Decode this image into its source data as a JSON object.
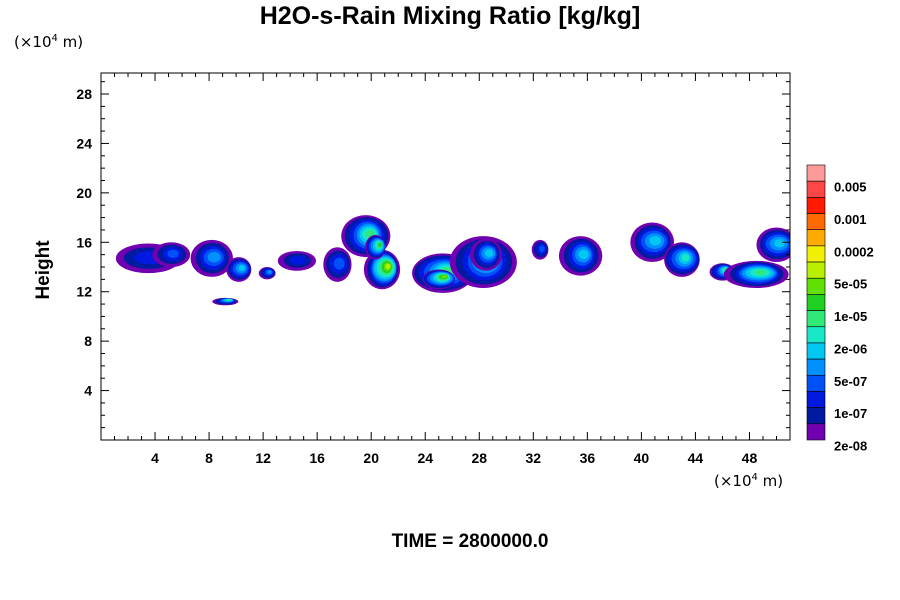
{
  "chart_data": {
    "type": "heatmap",
    "title": "H2O-s-Rain Mixing Ratio [kg/kg]",
    "ylabel": "Height",
    "xlabel": "",
    "x_units_prefix": "(×10",
    "x_units_exp": "4",
    "x_units_suffix": " m)",
    "y_units_prefix": "(×10",
    "y_units_exp": "4",
    "y_units_suffix": " m)",
    "xlim": [
      0,
      51
    ],
    "ylim": [
      0,
      29.7
    ],
    "x_ticks": [
      "4",
      "8",
      "12",
      "16",
      "20",
      "24",
      "28",
      "32",
      "36",
      "40",
      "44",
      "48"
    ],
    "y_ticks": [
      "4",
      "8",
      "12",
      "16",
      "20",
      "24",
      "28"
    ],
    "x_tick_values": [
      4,
      8,
      12,
      16,
      20,
      24,
      28,
      32,
      36,
      40,
      44,
      48
    ],
    "y_tick_values": [
      4,
      8,
      12,
      16,
      20,
      24,
      28
    ],
    "colorbar_labels": [
      "0.005",
      "0.001",
      "0.0002",
      "5e-05",
      "1e-05",
      "2e-06",
      "5e-07",
      "1e-07",
      "2e-08"
    ],
    "colorbar_colors": [
      "#ff9a9a",
      "#ff4646",
      "#ff1a00",
      "#ff6a00",
      "#ffaa00",
      "#f0f000",
      "#b8f000",
      "#60e000",
      "#20d020",
      "#30e878",
      "#18e8c8",
      "#00c8f0",
      "#0090ff",
      "#0050f8",
      "#0018e0",
      "#001aa0",
      "#7000b0"
    ],
    "features": [
      {
        "shape": "blob",
        "x": 3.5,
        "y": 14.7,
        "rx": 2.4,
        "ry": 1.2,
        "level": 14
      },
      {
        "shape": "blob",
        "x": 5.2,
        "y": 15.0,
        "rx": 1.3,
        "ry": 1.0,
        "level": 13
      },
      {
        "shape": "blob",
        "x": 8.2,
        "y": 14.7,
        "rx": 1.6,
        "ry": 1.5,
        "level": 12
      },
      {
        "shape": "blob",
        "x": 10.2,
        "y": 13.8,
        "rx": 1.0,
        "ry": 1.0,
        "level": 11
      },
      {
        "shape": "blob",
        "x": 12.3,
        "y": 13.5,
        "rx": 0.6,
        "ry": 0.5,
        "level": 12
      },
      {
        "shape": "blob",
        "x": 9.2,
        "y": 11.2,
        "rx": 0.9,
        "ry": 0.3,
        "level": 10
      },
      {
        "shape": "blob",
        "x": 14.5,
        "y": 14.5,
        "rx": 1.5,
        "ry": 0.8,
        "level": 14
      },
      {
        "shape": "blob",
        "x": 17.5,
        "y": 14.2,
        "rx": 1.1,
        "ry": 1.4,
        "level": 13
      },
      {
        "shape": "blob",
        "x": 19.6,
        "y": 16.5,
        "rx": 1.7,
        "ry": 1.7,
        "level": 9
      },
      {
        "shape": "blob",
        "x": 20.8,
        "y": 13.8,
        "rx": 1.3,
        "ry": 1.6,
        "level": 6
      },
      {
        "shape": "blob",
        "x": 20.3,
        "y": 15.6,
        "rx": 0.8,
        "ry": 1.0,
        "level": 8
      },
      {
        "shape": "blob",
        "x": 25.3,
        "y": 13.5,
        "rx": 2.3,
        "ry": 1.6,
        "level": 9
      },
      {
        "shape": "blob",
        "x": 28.3,
        "y": 14.4,
        "rx": 2.3,
        "ry": 2.1,
        "level": 10
      },
      {
        "shape": "blob",
        "x": 28.5,
        "y": 15.0,
        "rx": 1.2,
        "ry": 1.3,
        "level": 11
      },
      {
        "shape": "blob",
        "x": 25.0,
        "y": 13.0,
        "rx": 1.3,
        "ry": 0.8,
        "level": 7
      },
      {
        "shape": "blob",
        "x": 32.5,
        "y": 15.4,
        "rx": 0.6,
        "ry": 0.8,
        "level": 13
      },
      {
        "shape": "blob",
        "x": 35.5,
        "y": 14.9,
        "rx": 1.5,
        "ry": 1.6,
        "level": 11
      },
      {
        "shape": "blob",
        "x": 40.8,
        "y": 16.0,
        "rx": 1.7,
        "ry": 1.6,
        "level": 11
      },
      {
        "shape": "blob",
        "x": 43.0,
        "y": 14.6,
        "rx": 1.4,
        "ry": 1.4,
        "level": 10
      },
      {
        "shape": "blob",
        "x": 46.0,
        "y": 13.6,
        "rx": 0.9,
        "ry": 0.7,
        "level": 9
      },
      {
        "shape": "blob",
        "x": 48.5,
        "y": 13.4,
        "rx": 2.3,
        "ry": 1.1,
        "level": 9
      },
      {
        "shape": "blob",
        "x": 50.0,
        "y": 15.8,
        "rx": 1.6,
        "ry": 1.4,
        "level": 11
      }
    ]
  },
  "time_label": "TIME = 2800000.0"
}
